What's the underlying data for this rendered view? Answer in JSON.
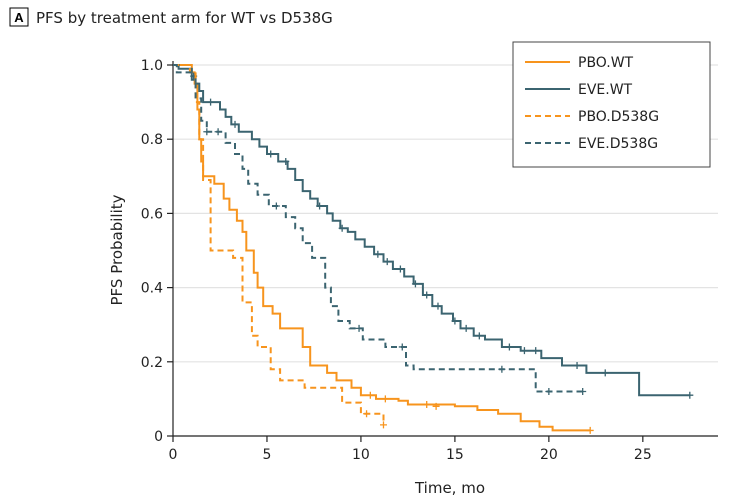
{
  "panel": {
    "letter": "A",
    "title": "PFS by treatment arm for WT vs D538G"
  },
  "colors": {
    "pbo": "#f7941d",
    "eve": "#3b6470",
    "grid": "#e3e3e3",
    "axis": "#222222"
  },
  "chart_data": {
    "type": "line",
    "title": "PFS by treatment arm for WT vs D538G",
    "xlabel": "Time, mo",
    "ylabel": "PFS Probability",
    "xlim": [
      0,
      29
    ],
    "ylim": [
      0,
      1.0
    ],
    "x_ticks": [
      0,
      5,
      10,
      15,
      20,
      25
    ],
    "y_ticks": [
      0,
      0.2,
      0.4,
      0.6,
      0.8,
      1.0
    ],
    "grid": "horizontal",
    "legend_position": "top-right",
    "series": [
      {
        "name": "PBO.WT",
        "color": "#f7941d",
        "dash": "solid",
        "steps": [
          [
            0,
            1.0
          ],
          [
            1.0,
            0.98
          ],
          [
            1.15,
            0.95
          ],
          [
            1.3,
            0.88
          ],
          [
            1.4,
            0.8
          ],
          [
            1.5,
            0.74
          ],
          [
            1.6,
            0.7
          ],
          [
            2.2,
            0.68
          ],
          [
            2.7,
            0.64
          ],
          [
            3.0,
            0.61
          ],
          [
            3.4,
            0.58
          ],
          [
            3.7,
            0.55
          ],
          [
            3.9,
            0.5
          ],
          [
            4.3,
            0.44
          ],
          [
            4.5,
            0.4
          ],
          [
            4.8,
            0.35
          ],
          [
            5.3,
            0.33
          ],
          [
            5.7,
            0.29
          ],
          [
            6.9,
            0.24
          ],
          [
            7.3,
            0.19
          ],
          [
            8.2,
            0.17
          ],
          [
            8.7,
            0.15
          ],
          [
            9.5,
            0.13
          ],
          [
            10.0,
            0.11
          ],
          [
            10.8,
            0.1
          ],
          [
            12.0,
            0.095
          ],
          [
            12.5,
            0.085
          ],
          [
            15.0,
            0.08
          ],
          [
            16.2,
            0.07
          ],
          [
            17.3,
            0.06
          ],
          [
            18.5,
            0.04
          ],
          [
            19.5,
            0.025
          ],
          [
            20.2,
            0.015
          ],
          [
            22.2,
            0.015
          ]
        ],
        "censored": [
          [
            10.5,
            0.11
          ],
          [
            11.3,
            0.1
          ],
          [
            13.5,
            0.085
          ],
          [
            14.0,
            0.08
          ],
          [
            22.2,
            0.015
          ]
        ]
      },
      {
        "name": "EVE.WT",
        "color": "#3b6470",
        "dash": "solid",
        "steps": [
          [
            0,
            1.0
          ],
          [
            0.3,
            0.99
          ],
          [
            1.0,
            0.97
          ],
          [
            1.2,
            0.95
          ],
          [
            1.4,
            0.93
          ],
          [
            1.6,
            0.9
          ],
          [
            2.5,
            0.88
          ],
          [
            2.8,
            0.86
          ],
          [
            3.1,
            0.84
          ],
          [
            3.5,
            0.82
          ],
          [
            4.2,
            0.8
          ],
          [
            4.6,
            0.78
          ],
          [
            5.0,
            0.76
          ],
          [
            5.6,
            0.74
          ],
          [
            6.1,
            0.72
          ],
          [
            6.5,
            0.69
          ],
          [
            6.9,
            0.66
          ],
          [
            7.3,
            0.64
          ],
          [
            7.7,
            0.62
          ],
          [
            8.2,
            0.6
          ],
          [
            8.5,
            0.58
          ],
          [
            8.9,
            0.56
          ],
          [
            9.3,
            0.55
          ],
          [
            9.7,
            0.53
          ],
          [
            10.2,
            0.51
          ],
          [
            10.7,
            0.49
          ],
          [
            11.2,
            0.47
          ],
          [
            11.7,
            0.45
          ],
          [
            12.3,
            0.43
          ],
          [
            12.8,
            0.41
          ],
          [
            13.3,
            0.38
          ],
          [
            13.8,
            0.35
          ],
          [
            14.3,
            0.33
          ],
          [
            14.9,
            0.31
          ],
          [
            15.3,
            0.29
          ],
          [
            16.0,
            0.27
          ],
          [
            16.6,
            0.26
          ],
          [
            17.5,
            0.24
          ],
          [
            18.5,
            0.23
          ],
          [
            19.2,
            0.23
          ],
          [
            19.6,
            0.21
          ],
          [
            20.7,
            0.19
          ],
          [
            22.0,
            0.17
          ],
          [
            24.8,
            0.11
          ],
          [
            27.5,
            0.11
          ]
        ],
        "censored": [
          [
            1.1,
            0.97
          ],
          [
            2.0,
            0.9
          ],
          [
            3.3,
            0.84
          ],
          [
            5.2,
            0.76
          ],
          [
            6.0,
            0.74
          ],
          [
            7.8,
            0.62
          ],
          [
            9.0,
            0.56
          ],
          [
            10.9,
            0.49
          ],
          [
            11.4,
            0.47
          ],
          [
            12.1,
            0.45
          ],
          [
            12.9,
            0.41
          ],
          [
            13.5,
            0.38
          ],
          [
            14.1,
            0.35
          ],
          [
            15.0,
            0.31
          ],
          [
            15.6,
            0.29
          ],
          [
            16.3,
            0.27
          ],
          [
            17.9,
            0.24
          ],
          [
            18.7,
            0.23
          ],
          [
            19.3,
            0.23
          ],
          [
            21.5,
            0.19
          ],
          [
            23.0,
            0.17
          ],
          [
            27.5,
            0.11
          ]
        ]
      },
      {
        "name": "PBO.D538G",
        "color": "#f7941d",
        "dash": "dashed",
        "steps": [
          [
            0,
            1.0
          ],
          [
            0.9,
            0.98
          ],
          [
            1.2,
            0.9
          ],
          [
            1.4,
            0.8
          ],
          [
            1.6,
            0.69
          ],
          [
            2.0,
            0.5
          ],
          [
            2.6,
            0.5
          ],
          [
            3.2,
            0.48
          ],
          [
            3.7,
            0.36
          ],
          [
            4.2,
            0.27
          ],
          [
            4.5,
            0.24
          ],
          [
            5.2,
            0.18
          ],
          [
            5.7,
            0.15
          ],
          [
            7.0,
            0.13
          ],
          [
            9.0,
            0.09
          ],
          [
            10.0,
            0.06
          ],
          [
            11.2,
            0.03
          ]
        ],
        "censored": [
          [
            10.3,
            0.06
          ],
          [
            11.2,
            0.03
          ]
        ]
      },
      {
        "name": "EVE.D538G",
        "color": "#3b6470",
        "dash": "dashed",
        "steps": [
          [
            0,
            1.0
          ],
          [
            0.2,
            0.98
          ],
          [
            1.0,
            0.96
          ],
          [
            1.2,
            0.91
          ],
          [
            1.5,
            0.85
          ],
          [
            1.8,
            0.82
          ],
          [
            2.4,
            0.82
          ],
          [
            2.8,
            0.79
          ],
          [
            3.3,
            0.76
          ],
          [
            3.7,
            0.72
          ],
          [
            4.0,
            0.68
          ],
          [
            4.5,
            0.65
          ],
          [
            5.1,
            0.62
          ],
          [
            6.0,
            0.59
          ],
          [
            6.5,
            0.56
          ],
          [
            6.9,
            0.52
          ],
          [
            7.4,
            0.48
          ],
          [
            8.1,
            0.4
          ],
          [
            8.4,
            0.35
          ],
          [
            8.8,
            0.31
          ],
          [
            9.4,
            0.29
          ],
          [
            10.1,
            0.26
          ],
          [
            11.3,
            0.24
          ],
          [
            12.4,
            0.19
          ],
          [
            12.8,
            0.18
          ],
          [
            18.0,
            0.18
          ],
          [
            19.3,
            0.12
          ],
          [
            22.0,
            0.12
          ]
        ],
        "censored": [
          [
            1.8,
            0.82
          ],
          [
            2.4,
            0.82
          ],
          [
            5.5,
            0.62
          ],
          [
            9.9,
            0.29
          ],
          [
            12.2,
            0.24
          ],
          [
            17.5,
            0.18
          ],
          [
            20.0,
            0.12
          ],
          [
            21.8,
            0.12
          ]
        ]
      }
    ]
  }
}
